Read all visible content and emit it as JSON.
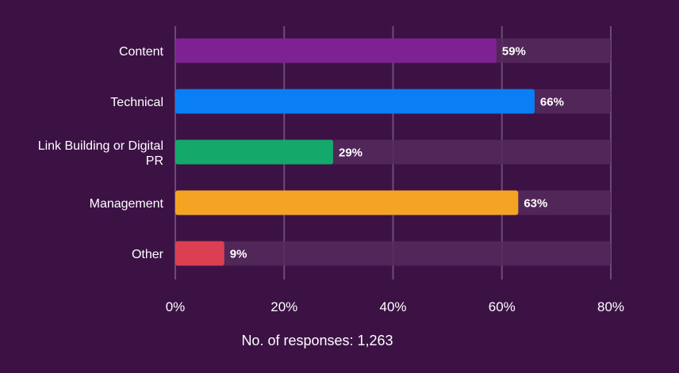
{
  "chart_data": {
    "type": "bar",
    "orientation": "horizontal",
    "categories": [
      "Content",
      "Technical",
      "Link Building or Digital PR",
      "Management",
      "Other"
    ],
    "values": [
      59,
      66,
      29,
      63,
      9
    ],
    "value_labels": [
      "59%",
      "66%",
      "29%",
      "63%",
      "9%"
    ],
    "bar_colors": [
      "#7e2293",
      "#0a7ff5",
      "#14a86a",
      "#f4a422",
      "#dc3f52"
    ],
    "track_color": "#552a5d",
    "xlim": [
      0,
      80
    ],
    "xticks": [
      0,
      20,
      40,
      60,
      80
    ],
    "xtick_labels": [
      "0%",
      "20%",
      "40%",
      "60%",
      "80%"
    ],
    "grid": true,
    "legend": "none",
    "title": "",
    "xlabel": "",
    "ylabel": ""
  },
  "footnote": "No. of responses: 1,263",
  "colors": {
    "background": "#3c1245",
    "text": "#ffffff",
    "gridline": "#6e4a76"
  }
}
